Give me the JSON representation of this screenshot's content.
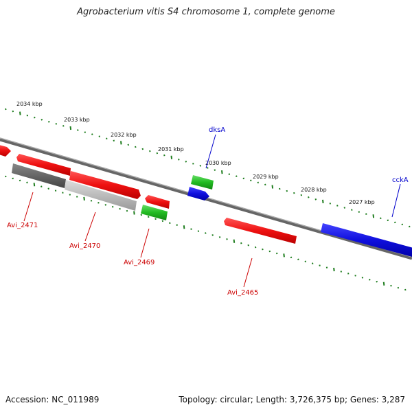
{
  "title": "Agrobacterium vitis S4 chromosome 1, complete genome",
  "footer": {
    "accession": "Accession: NC_011989",
    "topology": "Topology: circular; Length: 3,726,375 bp; Genes: 3,287"
  },
  "colors": {
    "backbone": "#808080",
    "ticks": "#1e7d1e",
    "red": "#ee1111",
    "blue": "#1010dd",
    "green": "#22bb22",
    "dark_gray": "#666666",
    "light_gray": "#bbbbbb",
    "label_red": "#cc0000",
    "label_blue": "#0000cc"
  },
  "scale_labels": [
    "2034 kbp",
    "2033 kbp",
    "2032 kbp",
    "2031 kbp",
    "2030 kbp",
    "2029 kbp",
    "2028 kbp",
    "2027 kbp"
  ],
  "gene_labels": {
    "dksA": "dksA",
    "cckA": "cckA",
    "avi_2471": "Avi_2471",
    "avi_2470": "Avi_2470",
    "avi_2469": "Avi_2469",
    "avi_2465": "Avi_2465"
  }
}
